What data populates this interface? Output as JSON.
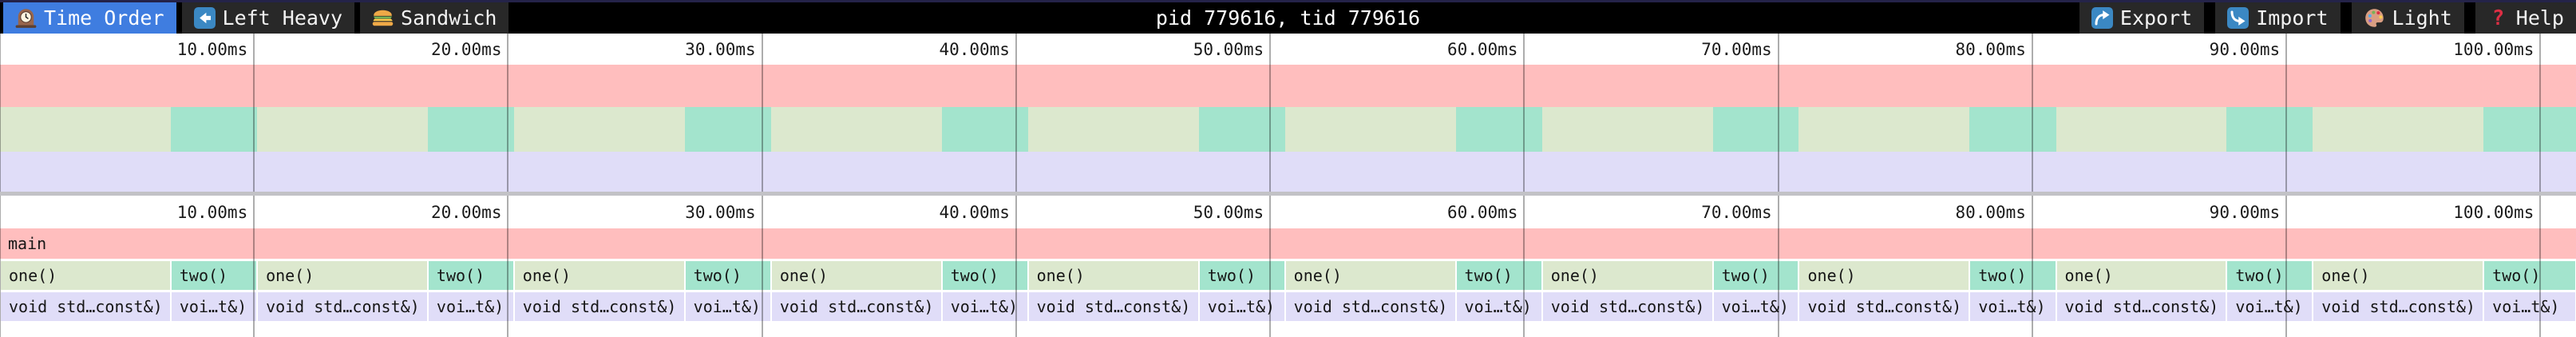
{
  "app": {
    "title": "pid 779616, tid 779616"
  },
  "toolbar": {
    "tabs": [
      {
        "label": "Time Order",
        "icon": "clock-icon",
        "active": true
      },
      {
        "label": "Left Heavy",
        "icon": "left-arrow-icon",
        "active": false
      },
      {
        "label": "Sandwich",
        "icon": "sandwich-icon",
        "active": false
      }
    ],
    "buttons": [
      {
        "label": "Export",
        "icon": "export-icon"
      },
      {
        "label": "Import",
        "icon": "import-icon"
      },
      {
        "label": "Light",
        "icon": "palette-icon"
      },
      {
        "label": "Help",
        "icon": "help-icon"
      }
    ]
  },
  "timeline": {
    "unit": "ms",
    "total_ms": 101.4,
    "gridline_ms": [
      0,
      10,
      20,
      30,
      40,
      50,
      60,
      70,
      80,
      90,
      100
    ],
    "ticks": [
      {
        "ms": 10,
        "label": "10.00ms"
      },
      {
        "ms": 20,
        "label": "20.00ms"
      },
      {
        "ms": 30,
        "label": "30.00ms"
      },
      {
        "ms": 40,
        "label": "40.00ms"
      },
      {
        "ms": 50,
        "label": "50.00ms"
      },
      {
        "ms": 60,
        "label": "60.00ms"
      },
      {
        "ms": 70,
        "label": "70.00ms"
      },
      {
        "ms": 80,
        "label": "80.00ms"
      },
      {
        "ms": 90,
        "label": "90.00ms"
      },
      {
        "ms": 100,
        "label": "100.00ms"
      }
    ]
  },
  "colors": {
    "frame_main": "#ffbebe",
    "frame_one": "#dce8ce",
    "frame_two": "#a3e4cd",
    "frame_child": "#e0ddf8",
    "active_tab": "#3f7de0",
    "toolbar_bg": "#000000",
    "tile_bg": "#282828",
    "top_strip": "#242349",
    "divider": "#c2c2c6",
    "help_icon_red": "#DD2E44",
    "emoji_blue": "#3B88C3"
  },
  "chart_data": {
    "type": "flamegraph",
    "unit": "ms",
    "total_ms": 101.4,
    "rows": [
      {
        "depth": 0,
        "frames": [
          {
            "label": "main",
            "start": 0,
            "end": 101.4,
            "color": "frame_main"
          }
        ]
      },
      {
        "depth": 1,
        "frames": [
          {
            "label": "one()",
            "start": 0,
            "end": 6.72,
            "color": "frame_one"
          },
          {
            "label": "two()",
            "start": 6.72,
            "end": 10.12,
            "color": "frame_two"
          },
          {
            "label": "one()",
            "start": 10.12,
            "end": 16.84,
            "color": "frame_one"
          },
          {
            "label": "two()",
            "start": 16.84,
            "end": 20.23,
            "color": "frame_two"
          },
          {
            "label": "one()",
            "start": 20.23,
            "end": 26.95,
            "color": "frame_one"
          },
          {
            "label": "two()",
            "start": 26.95,
            "end": 30.35,
            "color": "frame_two"
          },
          {
            "label": "one()",
            "start": 30.35,
            "end": 37.07,
            "color": "frame_one"
          },
          {
            "label": "two()",
            "start": 37.07,
            "end": 40.46,
            "color": "frame_two"
          },
          {
            "label": "one()",
            "start": 40.46,
            "end": 47.19,
            "color": "frame_one"
          },
          {
            "label": "two()",
            "start": 47.19,
            "end": 50.58,
            "color": "frame_two"
          },
          {
            "label": "one()",
            "start": 50.58,
            "end": 57.3,
            "color": "frame_one"
          },
          {
            "label": "two()",
            "start": 57.3,
            "end": 60.7,
            "color": "frame_two"
          },
          {
            "label": "one()",
            "start": 60.7,
            "end": 67.42,
            "color": "frame_one"
          },
          {
            "label": "two()",
            "start": 67.42,
            "end": 70.81,
            "color": "frame_two"
          },
          {
            "label": "one()",
            "start": 70.81,
            "end": 77.53,
            "color": "frame_one"
          },
          {
            "label": "two()",
            "start": 77.53,
            "end": 80.93,
            "color": "frame_two"
          },
          {
            "label": "one()",
            "start": 80.93,
            "end": 87.65,
            "color": "frame_one"
          },
          {
            "label": "two()",
            "start": 87.65,
            "end": 91.04,
            "color": "frame_two"
          },
          {
            "label": "one()",
            "start": 91.04,
            "end": 97.76,
            "color": "frame_one"
          },
          {
            "label": "two()",
            "start": 97.76,
            "end": 101.4,
            "color": "frame_two"
          }
        ]
      },
      {
        "depth": 2,
        "frames": [
          {
            "label": "void std…const&)",
            "start": 0,
            "end": 6.72,
            "color": "frame_child"
          },
          {
            "label": "voi…t&)",
            "start": 6.72,
            "end": 10.12,
            "color": "frame_child"
          },
          {
            "label": "void std…const&)",
            "start": 10.12,
            "end": 16.84,
            "color": "frame_child"
          },
          {
            "label": "voi…t&)",
            "start": 16.84,
            "end": 20.23,
            "color": "frame_child"
          },
          {
            "label": "void std…const&)",
            "start": 20.23,
            "end": 26.95,
            "color": "frame_child"
          },
          {
            "label": "voi…t&)",
            "start": 26.95,
            "end": 30.35,
            "color": "frame_child"
          },
          {
            "label": "void std…const&)",
            "start": 30.35,
            "end": 37.07,
            "color": "frame_child"
          },
          {
            "label": "voi…t&)",
            "start": 37.07,
            "end": 40.46,
            "color": "frame_child"
          },
          {
            "label": "void std…const&)",
            "start": 40.46,
            "end": 47.19,
            "color": "frame_child"
          },
          {
            "label": "voi…t&)",
            "start": 47.19,
            "end": 50.58,
            "color": "frame_child"
          },
          {
            "label": "void std…const&)",
            "start": 50.58,
            "end": 57.3,
            "color": "frame_child"
          },
          {
            "label": "voi…t&)",
            "start": 57.3,
            "end": 60.7,
            "color": "frame_child"
          },
          {
            "label": "void std…const&)",
            "start": 60.7,
            "end": 67.42,
            "color": "frame_child"
          },
          {
            "label": "voi…t&)",
            "start": 67.42,
            "end": 70.81,
            "color": "frame_child"
          },
          {
            "label": "void std…const&)",
            "start": 70.81,
            "end": 77.53,
            "color": "frame_child"
          },
          {
            "label": "voi…t&)",
            "start": 77.53,
            "end": 80.93,
            "color": "frame_child"
          },
          {
            "label": "void std…const&)",
            "start": 80.93,
            "end": 87.65,
            "color": "frame_child"
          },
          {
            "label": "voi…t&)",
            "start": 87.65,
            "end": 91.04,
            "color": "frame_child"
          },
          {
            "label": "void std…const&)",
            "start": 91.04,
            "end": 97.76,
            "color": "frame_child"
          },
          {
            "label": "voi…t&)",
            "start": 97.76,
            "end": 101.4,
            "color": "frame_child"
          }
        ]
      }
    ]
  }
}
